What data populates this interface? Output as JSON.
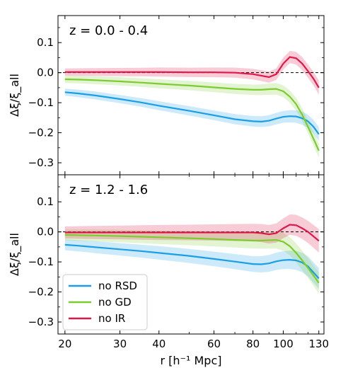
{
  "chart_data": {
    "type": "line",
    "xlabel": "r [h⁻¹ Mpc]",
    "ylabel": "Δξ/ξ_all",
    "xscale": "log",
    "xlim": [
      19,
      135
    ],
    "xticks": [
      20,
      30,
      40,
      60,
      80,
      100,
      130
    ],
    "ylim": [
      -0.34,
      0.19
    ],
    "yticks": [
      0.1,
      0.0,
      -0.1,
      -0.2,
      -0.3
    ],
    "yticklabels": [
      "0.1",
      "0.0",
      "−0.1",
      "−0.2",
      "−0.3"
    ],
    "legend": {
      "placement": "lower-left",
      "panel": 1
    },
    "colors": {
      "no RSD": "#1a9ee6",
      "no GD": "#7dcc2e",
      "no IR": "#e0184a"
    },
    "panels": [
      {
        "title": "z = 0.0 - 0.4",
        "x": [
          20,
          22,
          25,
          30,
          35,
          40,
          50,
          60,
          70,
          80,
          85,
          90,
          95,
          100,
          105,
          110,
          115,
          120,
          125,
          130
        ],
        "series": [
          {
            "name": "no RSD",
            "values": [
              -0.065,
              -0.069,
              -0.076,
              -0.088,
              -0.099,
              -0.11,
              -0.127,
              -0.142,
              -0.155,
              -0.162,
              -0.163,
              -0.16,
              -0.153,
              -0.147,
              -0.145,
              -0.146,
              -0.152,
              -0.162,
              -0.18,
              -0.205
            ],
            "band": 0.012
          },
          {
            "name": "no GD",
            "values": [
              -0.022,
              -0.023,
              -0.025,
              -0.029,
              -0.033,
              -0.037,
              -0.043,
              -0.049,
              -0.054,
              -0.057,
              -0.057,
              -0.055,
              -0.054,
              -0.062,
              -0.08,
              -0.105,
              -0.14,
              -0.18,
              -0.22,
              -0.26
            ],
            "band": 0.012
          },
          {
            "name": "no IR",
            "values": [
              0.002,
              0.002,
              0.002,
              0.002,
              0.002,
              0.002,
              0.001,
              0.001,
              0.0,
              -0.005,
              -0.01,
              -0.015,
              -0.005,
              0.03,
              0.052,
              0.048,
              0.03,
              0.005,
              -0.02,
              -0.05
            ],
            "band": 0.012
          }
        ]
      },
      {
        "title": "z = 1.2 - 1.6",
        "x": [
          20,
          22,
          25,
          30,
          35,
          40,
          50,
          60,
          70,
          80,
          85,
          90,
          95,
          100,
          105,
          110,
          115,
          120,
          125,
          130
        ],
        "series": [
          {
            "name": "no RSD",
            "values": [
              -0.043,
              -0.046,
              -0.051,
              -0.058,
              -0.064,
              -0.07,
              -0.08,
              -0.09,
              -0.099,
              -0.107,
              -0.108,
              -0.105,
              -0.098,
              -0.094,
              -0.093,
              -0.095,
              -0.102,
              -0.115,
              -0.135,
              -0.155
            ],
            "band": 0.018
          },
          {
            "name": "no GD",
            "values": [
              -0.01,
              -0.011,
              -0.012,
              -0.014,
              -0.016,
              -0.018,
              -0.021,
              -0.024,
              -0.027,
              -0.029,
              -0.029,
              -0.028,
              -0.027,
              -0.033,
              -0.048,
              -0.07,
              -0.095,
              -0.12,
              -0.145,
              -0.17
            ],
            "band": 0.018
          },
          {
            "name": "no IR",
            "values": [
              -0.002,
              -0.002,
              -0.002,
              -0.002,
              -0.002,
              -0.002,
              -0.002,
              -0.002,
              -0.002,
              -0.002,
              -0.004,
              -0.008,
              -0.004,
              0.012,
              0.024,
              0.022,
              0.012,
              0.0,
              -0.015,
              -0.03
            ],
            "band": 0.02
          }
        ]
      }
    ]
  }
}
